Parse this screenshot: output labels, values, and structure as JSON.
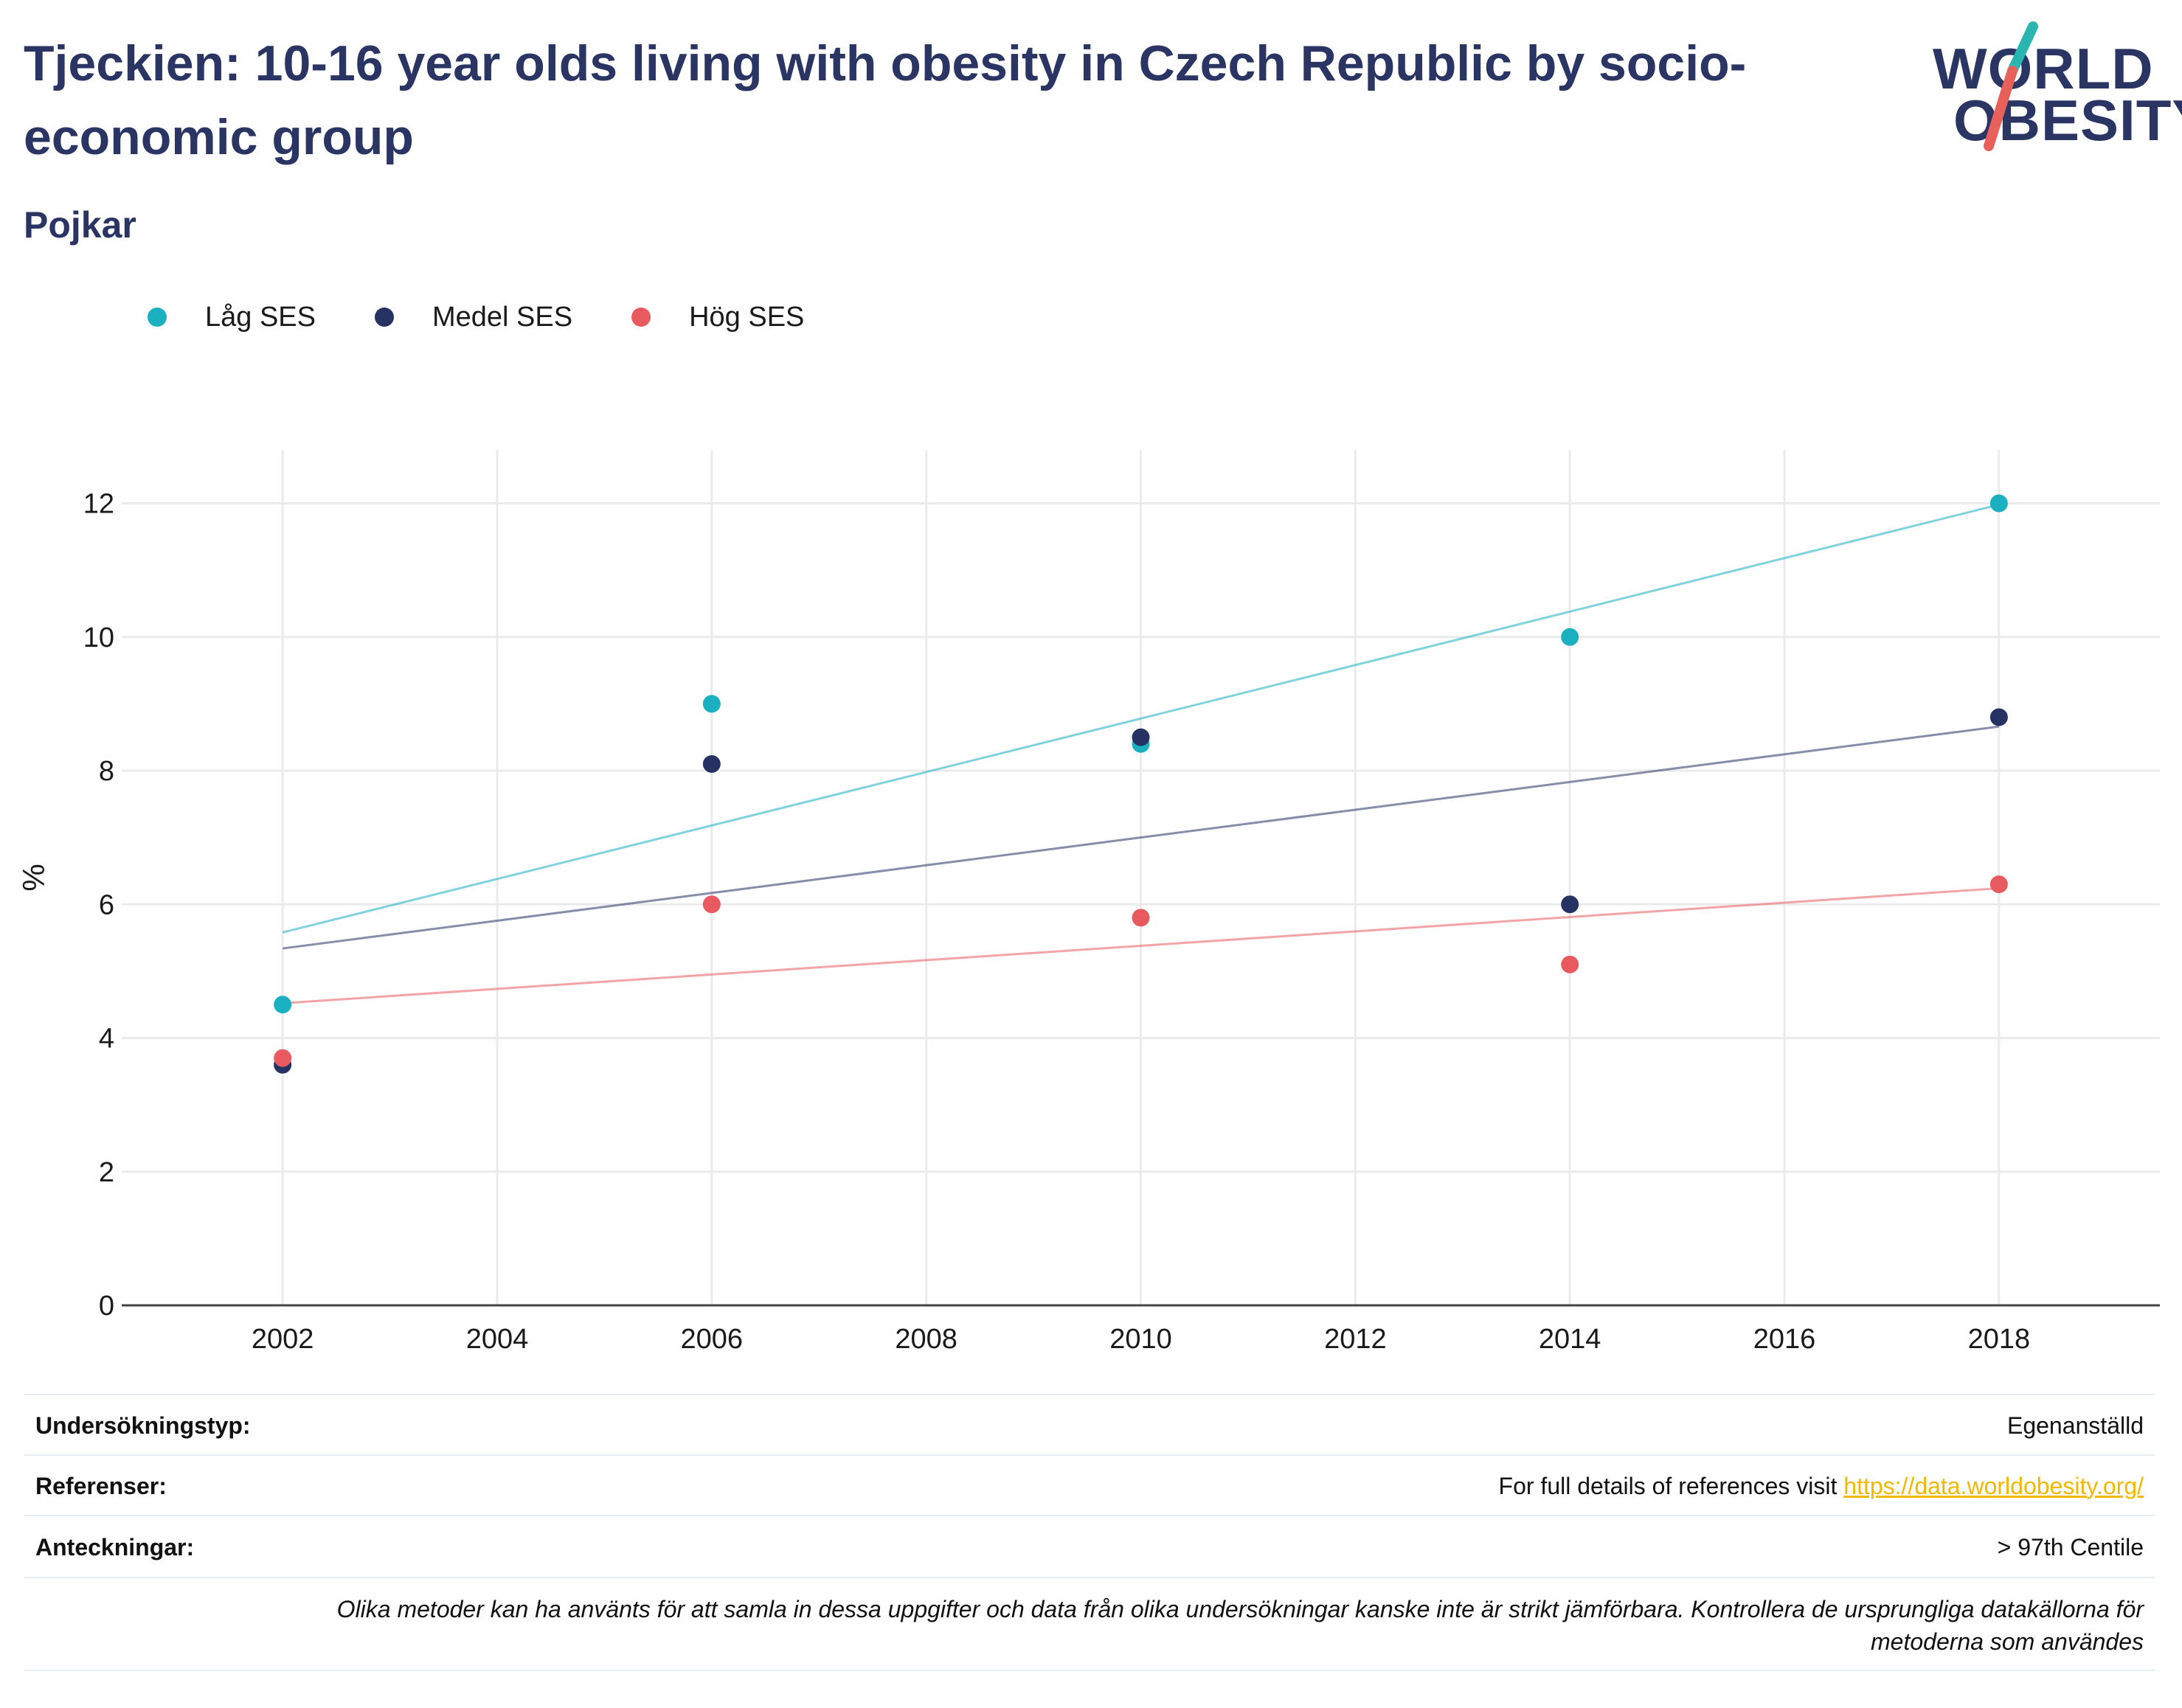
{
  "header": {
    "title": "Tjeckien: 10-16 year olds living with obesity in Czech Republic by socio-economic group",
    "subtitle": "Pojkar"
  },
  "logo": {
    "line1": "WORLD",
    "line2": "OBESITY",
    "slash_colors": [
      "#2bb5b0",
      "#e8605a"
    ]
  },
  "legend": [
    {
      "label": "Låg SES",
      "color": "#1ab0c0"
    },
    {
      "label": "Medel SES",
      "color": "#263264"
    },
    {
      "label": "Hög SES",
      "color": "#e85a5f"
    }
  ],
  "chart_data": {
    "type": "scatter",
    "title": "Tjeckien: 10-16 year olds living with obesity in Czech Republic by socio-economic group",
    "subtitle": "Pojkar",
    "xlabel": "",
    "ylabel": "%",
    "xlim": [
      2000.5,
      2019.5
    ],
    "ylim": [
      0,
      12.8
    ],
    "xticks": [
      2002,
      2004,
      2006,
      2008,
      2010,
      2012,
      2014,
      2016,
      2018
    ],
    "yticks": [
      0,
      2,
      4,
      6,
      8,
      10,
      12
    ],
    "grid": true,
    "legend_position": "top-left",
    "trendlines": true,
    "series": [
      {
        "name": "Låg SES",
        "color": "#1ab0c0",
        "x": [
          2002,
          2006,
          2010,
          2014,
          2018
        ],
        "values": [
          4.5,
          9.0,
          8.4,
          10.0,
          12.0
        ]
      },
      {
        "name": "Medel SES",
        "color": "#263264",
        "x": [
          2002,
          2006,
          2010,
          2014,
          2018
        ],
        "values": [
          3.6,
          8.1,
          8.5,
          6.0,
          8.8
        ]
      },
      {
        "name": "Hög SES",
        "color": "#e85a5f",
        "x": [
          2002,
          2006,
          2010,
          2014,
          2018
        ],
        "values": [
          3.7,
          6.0,
          5.8,
          5.1,
          6.3
        ]
      }
    ]
  },
  "footer": {
    "survey_type_label": "Undersökningstyp:",
    "survey_type_value": "Egenanställd",
    "references_label": "Referenser:",
    "references_text": "For full details of references visit ",
    "references_link": "https://data.worldobesity.org/",
    "notes_label": "Anteckningar:",
    "notes_value": "> 97th Centile",
    "disclaimer_line1": "Olika metoder kan ha använts för att samla in dessa uppgifter och data från olika undersökningar kanske inte är strikt jämförbara. Kontrollera de ursprungliga datakällorna för",
    "disclaimer_line2": "metoderna som användes"
  }
}
